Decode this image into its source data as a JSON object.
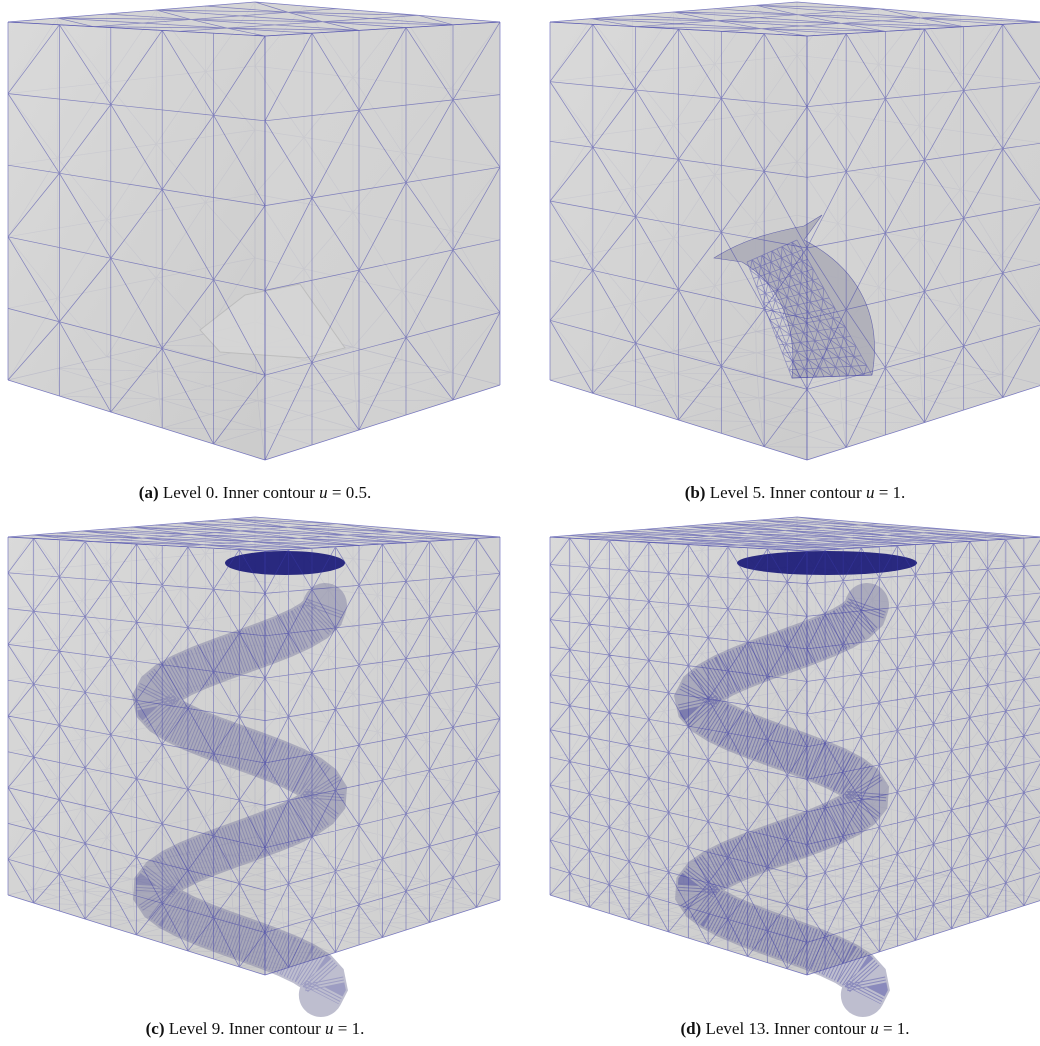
{
  "panels": [
    {
      "label": "(a)",
      "text": "Level 0. Inner contour",
      "math_var": "u",
      "math_rest": "= 0.5."
    },
    {
      "label": "(b)",
      "text": "Level 5. Inner contour",
      "math_var": "u",
      "math_rest": "= 1."
    },
    {
      "label": "(c)",
      "text": "Level 9. Inner contour",
      "math_var": "u",
      "math_rest": "= 1."
    },
    {
      "label": "(d)",
      "text": "Level 13. Inner contour",
      "math_var": "u",
      "math_rest": "= 1."
    }
  ]
}
